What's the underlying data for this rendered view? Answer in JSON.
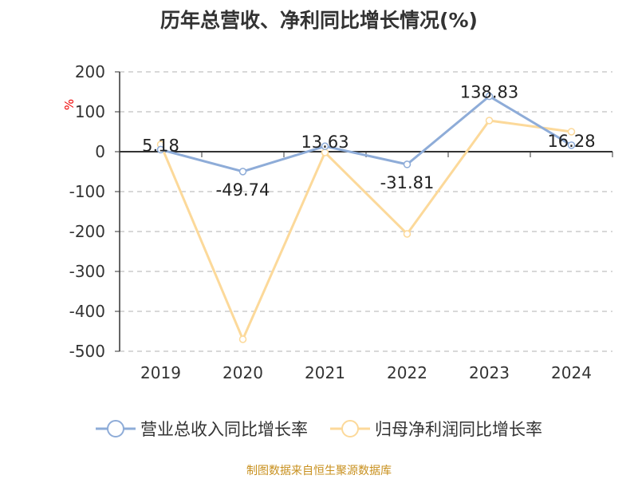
{
  "title": "历年总营收、净利同比增长情况(%)",
  "source": "制图数据来自恒生聚源数据库",
  "chart_data": {
    "type": "line",
    "title": "历年总营收、净利同比增长情况(%)",
    "ylabel": "%",
    "categories": [
      "2019",
      "2020",
      "2021",
      "2022",
      "2023",
      "2024"
    ],
    "ylim": [
      -500,
      200
    ],
    "yticks": [
      200,
      100,
      0,
      -100,
      -200,
      -300,
      -400,
      -500
    ],
    "grid": true,
    "legend_position": "bottom",
    "series": [
      {
        "name": "营业总收入同比增长率",
        "color": "#8eacd8",
        "values": [
          5.18,
          -49.74,
          13.63,
          -31.81,
          138.83,
          16.28
        ],
        "labels": [
          "5.18",
          "-49.74",
          "13.63",
          "-31.81",
          "138.83",
          "16.28"
        ]
      },
      {
        "name": "归母净利润同比增长率",
        "color": "#fcd99a",
        "values": [
          18,
          -470,
          -2,
          -206,
          78,
          50
        ]
      }
    ]
  }
}
